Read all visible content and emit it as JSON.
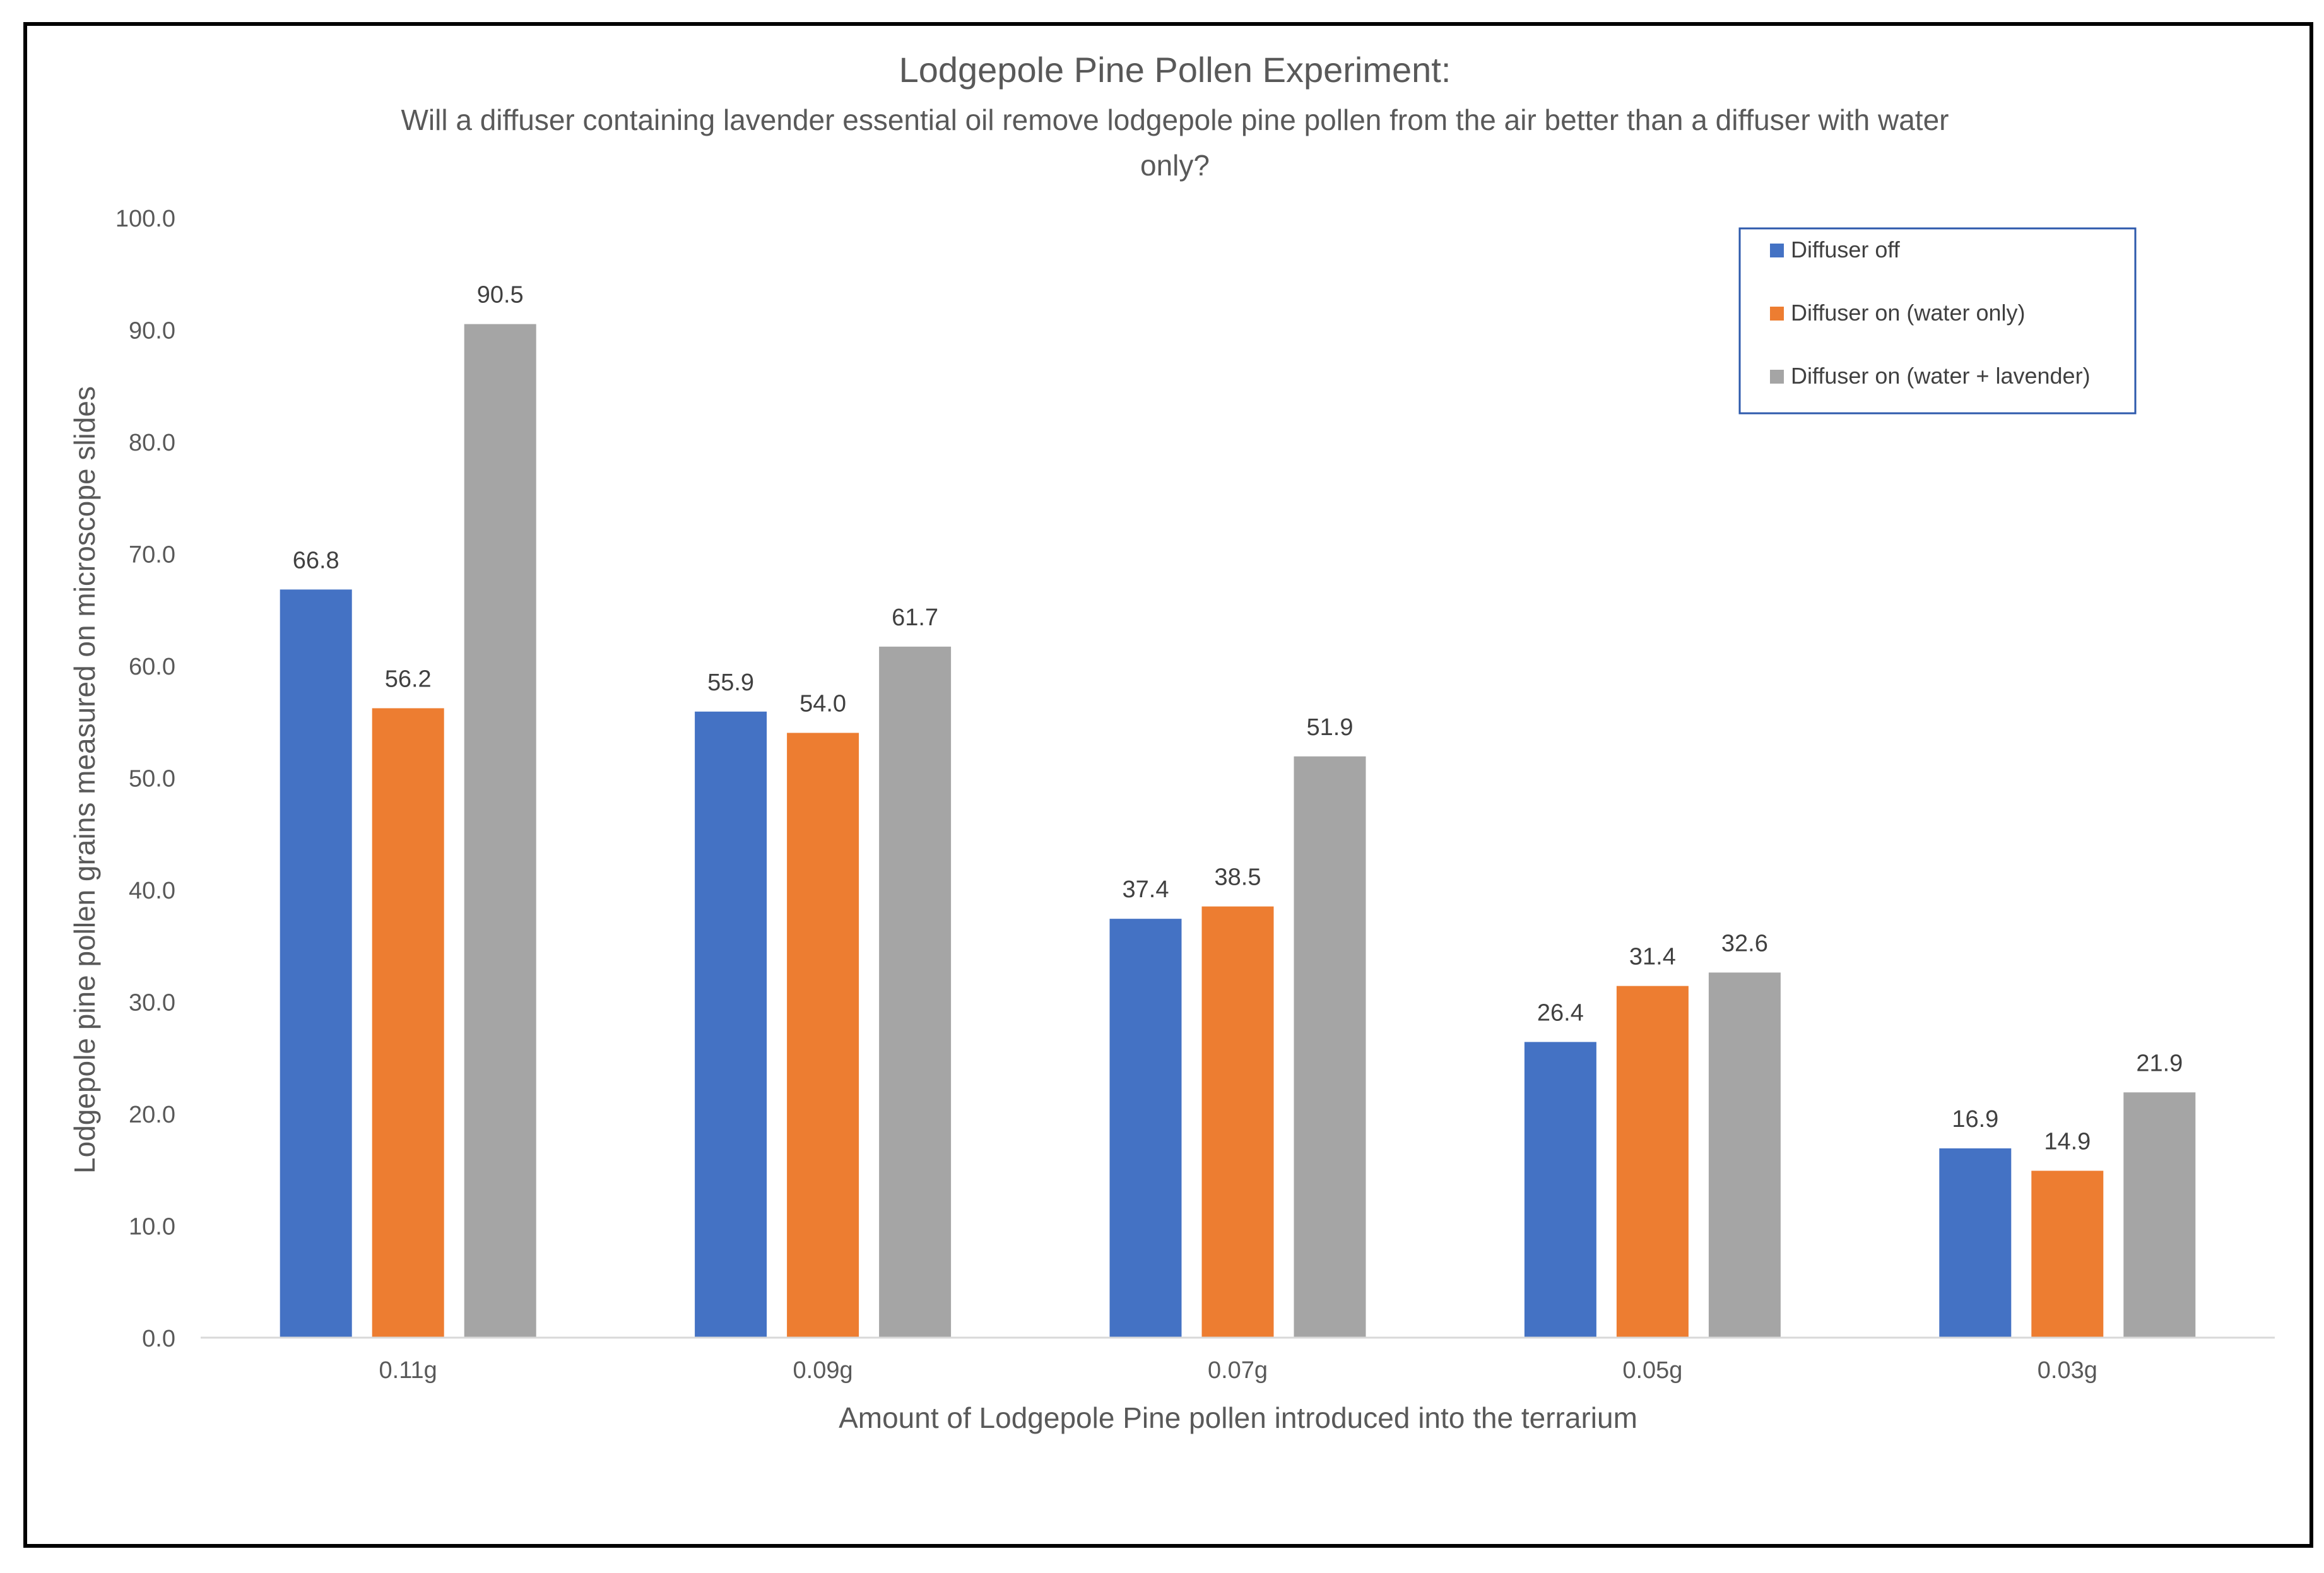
{
  "chart_data": {
    "type": "bar",
    "title": "Lodgepole Pine Pollen Experiment:",
    "subtitle_lines": [
      "Will a diffuser containing lavender essential oil remove lodgepole pine pollen from the air better than a diffuser with water",
      "only?"
    ],
    "xlabel": "Amount of Lodgepole Pine pollen introduced into the terrarium",
    "ylabel": "Lodgepole pine pollen grains measured on microscope slides",
    "categories": [
      "0.11g",
      "0.09g",
      "0.07g",
      "0.05g",
      "0.03g"
    ],
    "ylim": [
      0,
      100
    ],
    "yticks": [
      0,
      10,
      20,
      30,
      40,
      50,
      60,
      70,
      80,
      90,
      100
    ],
    "tick_format_decimals": 1,
    "grid": false,
    "legend_position": "top-right",
    "series": [
      {
        "name": "Diffuser off",
        "color": "#4472C4",
        "values": [
          66.8,
          55.9,
          37.4,
          26.4,
          16.9
        ]
      },
      {
        "name": "Diffuser on (water only)",
        "color": "#ED7D31",
        "values": [
          56.2,
          54.0,
          38.5,
          31.4,
          14.9
        ]
      },
      {
        "name": "Diffuser on (water + lavender)",
        "color": "#A5A5A5",
        "values": [
          90.5,
          61.7,
          51.9,
          32.6,
          21.9
        ]
      }
    ]
  }
}
